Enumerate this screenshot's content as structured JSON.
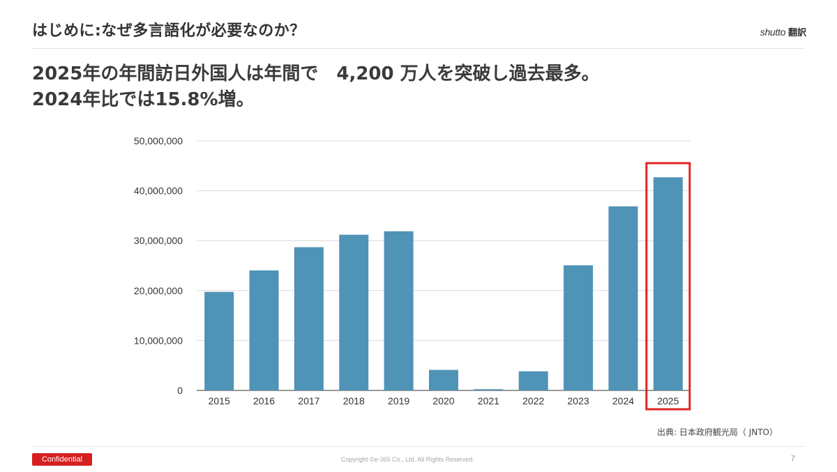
{
  "header": {
    "title": "はじめに:なぜ多言語化が必要なのか？",
    "brand_word": "shutto",
    "brand_kanji": "翻訳"
  },
  "headline": {
    "line1": "2025年の年間訪日外国人は年間で　4,200 万人を突破し過去最多。",
    "line2": "2024年比では15.8%増。"
  },
  "chart_data": {
    "type": "bar",
    "categories": [
      "2015",
      "2016",
      "2017",
      "2018",
      "2019",
      "2020",
      "2021",
      "2022",
      "2023",
      "2024",
      "2025"
    ],
    "values": [
      19737409,
      24039700,
      28691073,
      31191856,
      31882049,
      4115828,
      245862,
      3832110,
      25066350,
      36870148,
      42700000
    ],
    "title": "",
    "xlabel": "",
    "ylabel": "",
    "ylim": [
      0,
      50000000
    ],
    "y_ticks": [
      "0",
      "10,000,000",
      "20,000,000",
      "30,000,000",
      "40,000,000",
      "50,000,000"
    ],
    "y_tick_values": [
      0,
      10000000,
      20000000,
      30000000,
      40000000,
      50000000
    ],
    "grid": true,
    "legend": "none",
    "highlight_category": "2025",
    "colors": {
      "bar": "#4f93b6",
      "highlight": "#e02424",
      "grid": "#d9d9d9",
      "axis": "#333333"
    }
  },
  "footer": {
    "source": "出典: 日本政府観光局（ JNTO）",
    "confidential": "Confidential",
    "copyright": "Copyright ©e-365 Co., Ltd. All Rights Reserved.",
    "page_number": "7"
  }
}
